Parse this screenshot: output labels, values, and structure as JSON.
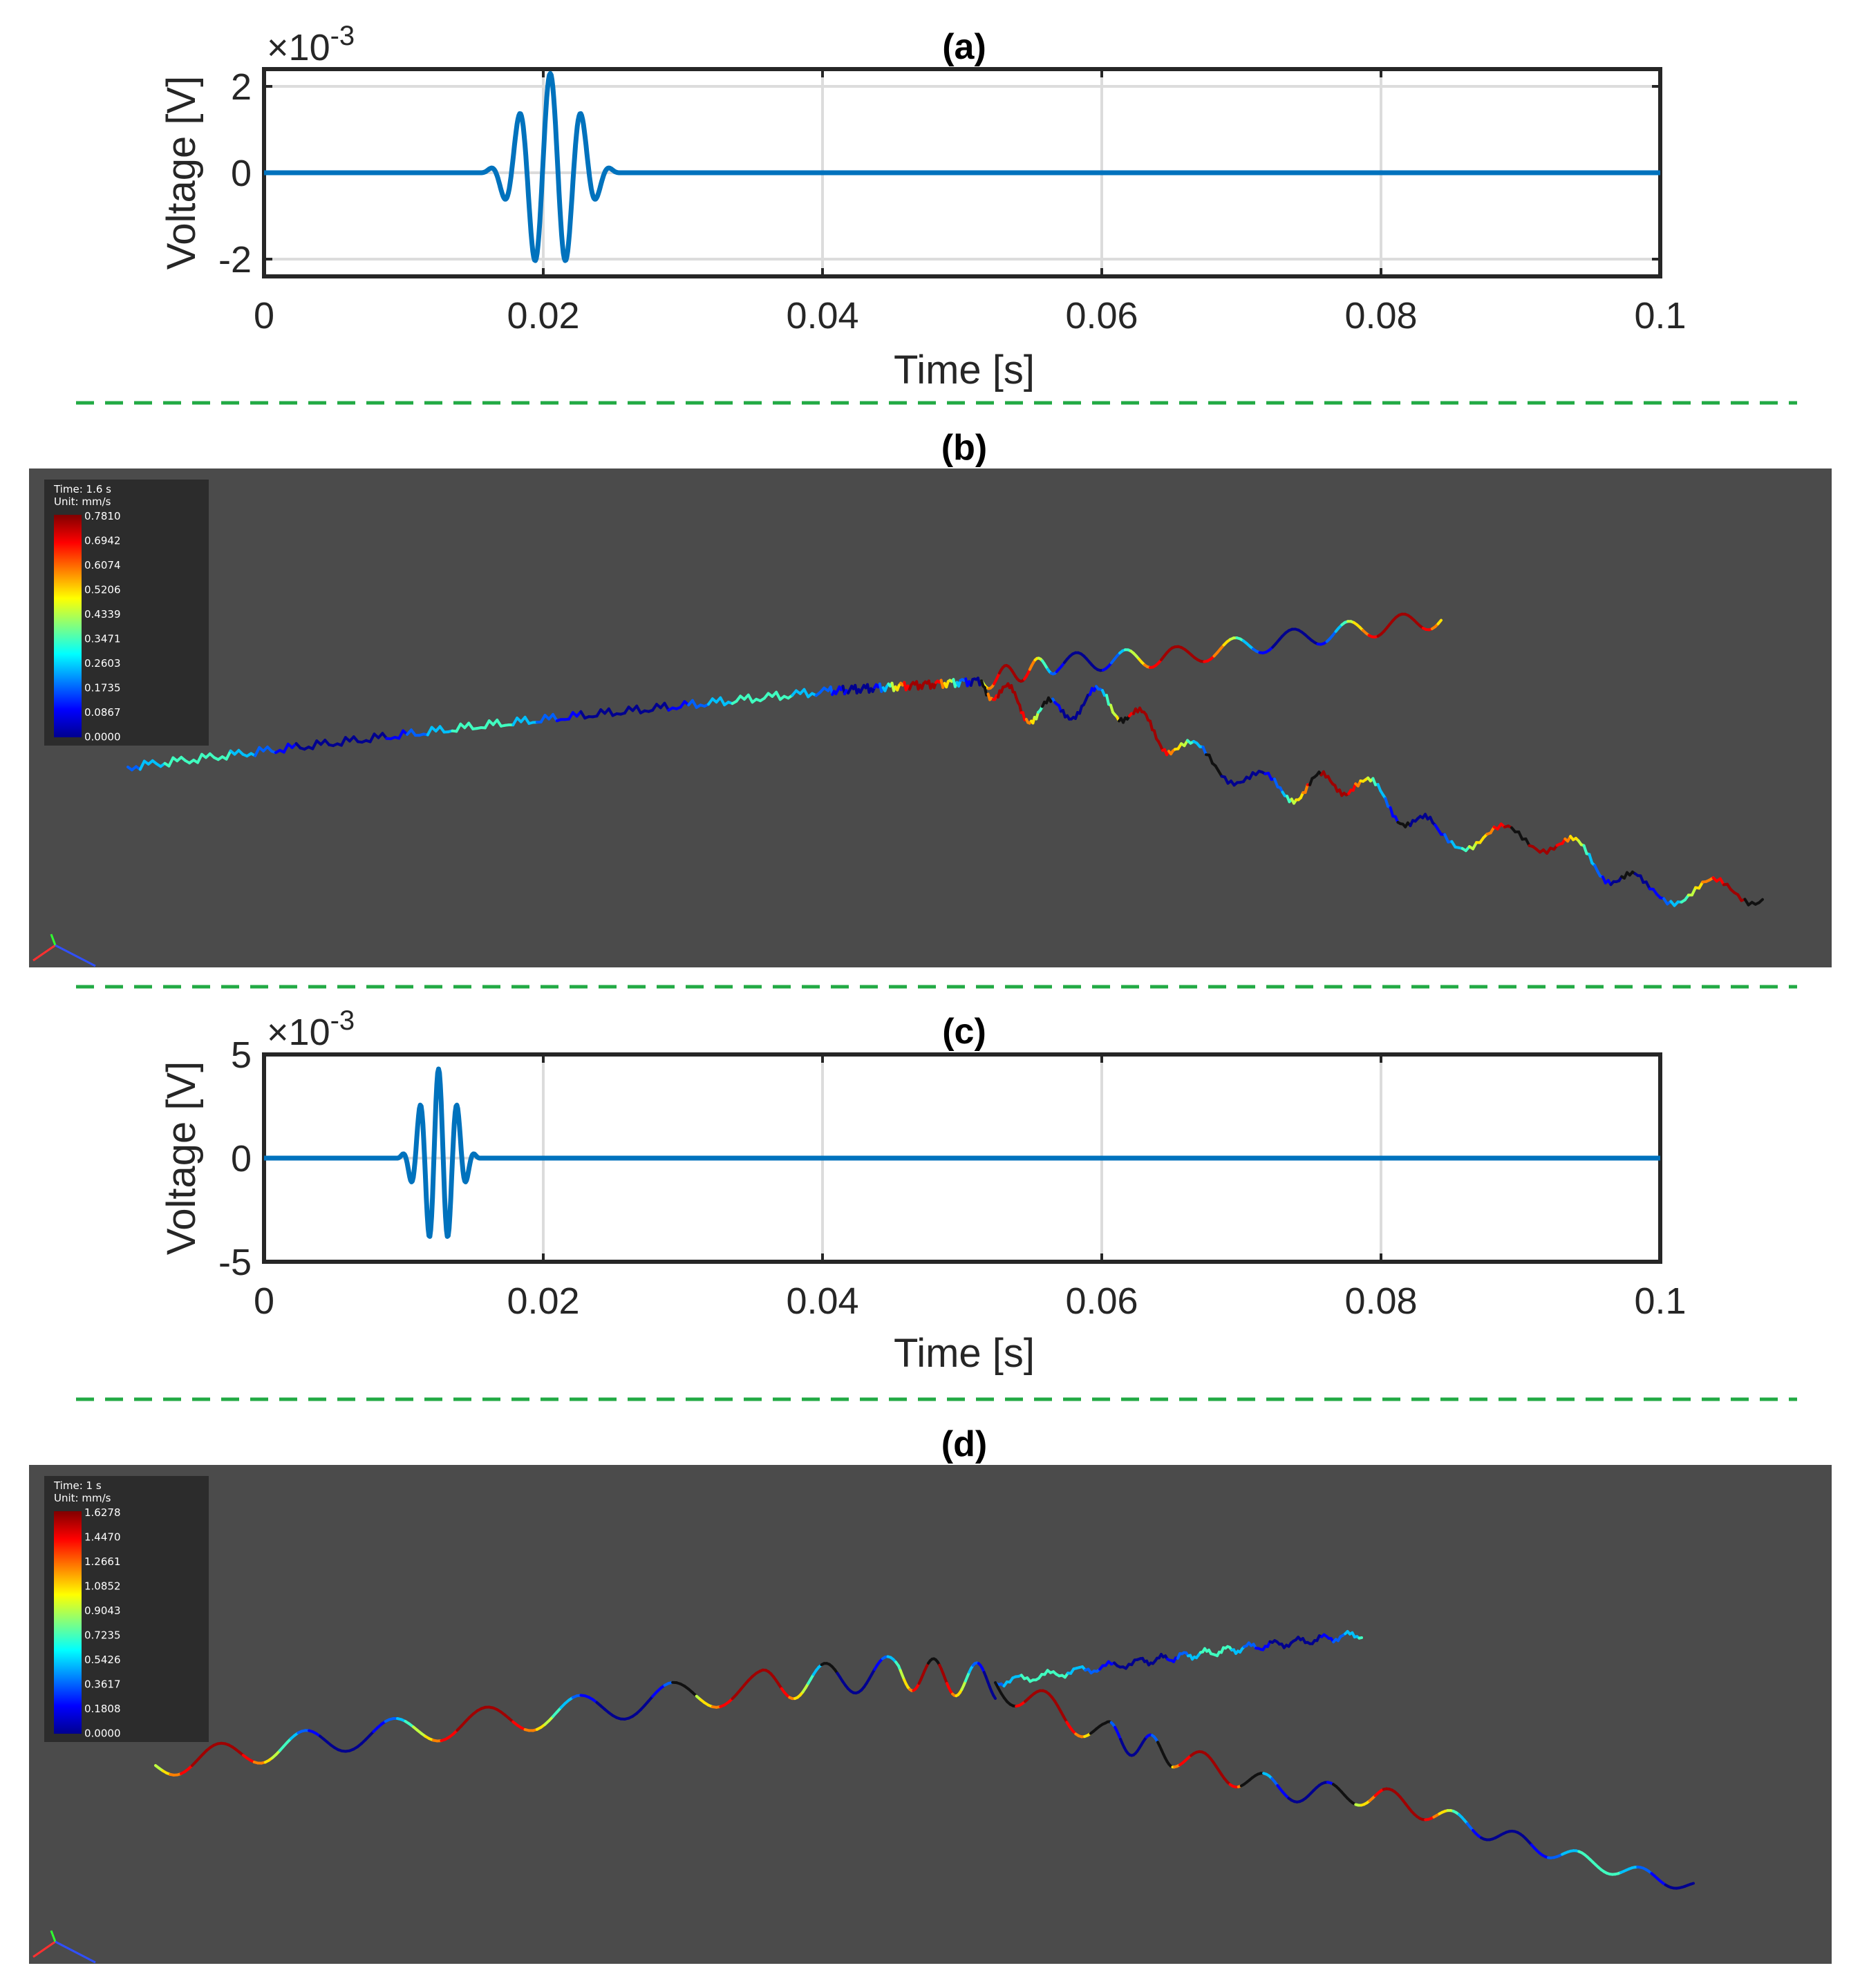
{
  "chart_data": [
    {
      "id": "a",
      "type": "line",
      "title": "(a)",
      "xlabel": "Time [s]",
      "ylabel": "Voltage [V]",
      "exponent_label": "×10",
      "exponent_power": "-3",
      "xlim": [
        0,
        0.1
      ],
      "ylim": [
        -2.4,
        2.4
      ],
      "xticks": [
        0,
        0.02,
        0.04,
        0.06,
        0.08,
        0.1
      ],
      "xtick_labels": [
        "0",
        "0.02",
        "0.04",
        "0.06",
        "0.08",
        "0.1"
      ],
      "yticks": [
        -2,
        0,
        2
      ],
      "ytick_labels": [
        "-2",
        "0",
        "2"
      ],
      "grid": true,
      "series": [
        {
          "name": "voltage",
          "color": "#0072BD",
          "burst": {
            "start": 0.0155,
            "end": 0.0255,
            "cycles": 4.5,
            "amplitude": 2.3
          }
        }
      ]
    },
    {
      "id": "b",
      "type": "heatmap",
      "title": "(b)",
      "time_label": "Time: 1.6 s",
      "unit_label": "Unit: mm/s",
      "colorbar_labels": [
        "0.7810",
        "0.6942",
        "0.6074",
        "0.5206",
        "0.4339",
        "0.3471",
        "0.2603",
        "0.1735",
        "0.0867",
        "0.0000"
      ],
      "background": "#4b4b4b"
    },
    {
      "id": "c",
      "type": "line",
      "title": "(c)",
      "xlabel": "Time [s]",
      "ylabel": "Voltage [V]",
      "exponent_label": "×10",
      "exponent_power": "-3",
      "xlim": [
        0,
        0.1
      ],
      "ylim": [
        -5,
        5
      ],
      "xticks": [
        0,
        0.02,
        0.04,
        0.06,
        0.08,
        0.1
      ],
      "xtick_labels": [
        "0",
        "0.02",
        "0.04",
        "0.06",
        "0.08",
        "0.1"
      ],
      "yticks": [
        -5,
        0,
        5
      ],
      "ytick_labels": [
        "-5",
        "0",
        "5"
      ],
      "grid": true,
      "series": [
        {
          "name": "voltage",
          "color": "#0072BD",
          "burst": {
            "start": 0.0095,
            "end": 0.0155,
            "cycles": 4.5,
            "amplitude": 4.3
          }
        }
      ]
    },
    {
      "id": "d",
      "type": "heatmap",
      "title": "(d)",
      "time_label": "Time: 1 s",
      "unit_label": "Unit: mm/s",
      "colorbar_labels": [
        "1.6278",
        "1.4470",
        "1.2661",
        "1.0852",
        "0.9043",
        "0.7235",
        "0.5426",
        "0.3617",
        "0.1808",
        "0.0000"
      ],
      "background": "#4b4b4b"
    }
  ],
  "colors": {
    "separator": "#22aa44",
    "line": "#0072BD",
    "viewport_bg": "#4b4b4b",
    "colorbar_bg": "#2c2c2c"
  }
}
